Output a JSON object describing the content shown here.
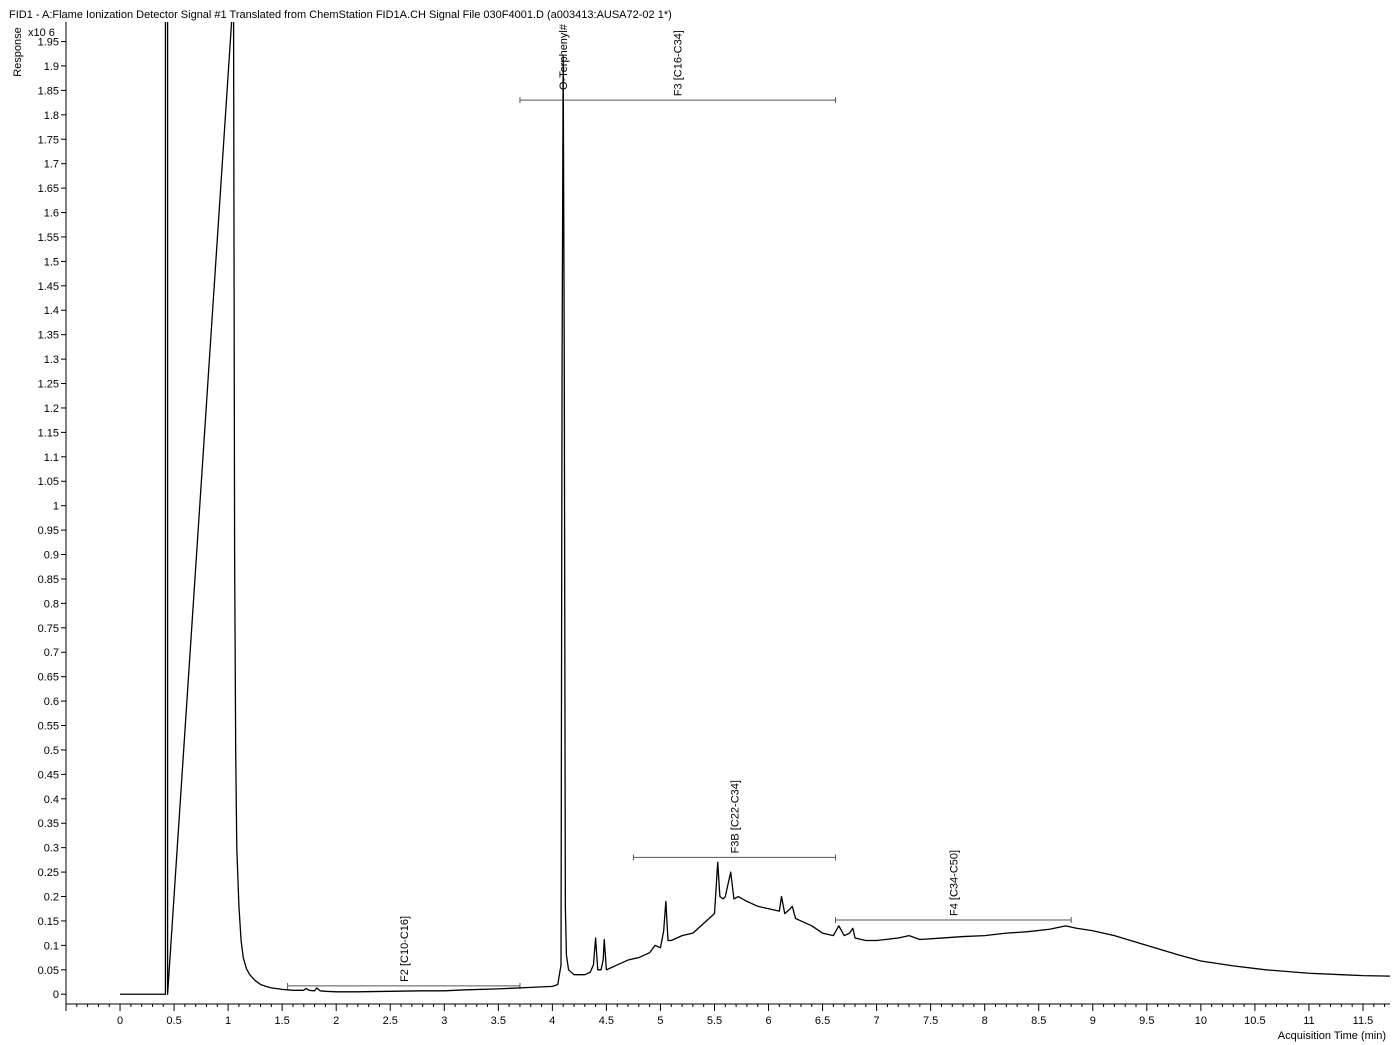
{
  "chart_data": {
    "type": "line",
    "title": "FID1 - A:Flame Ionization Detector Signal #1 Translated from ChemStation FID1A.CH Signal File 030F4001.D (a003413:AUSA72-02 1*)",
    "xlabel": "Acquisition Time (min)",
    "ylabel": "Response",
    "y_scale_label": "x10 6",
    "xlim": [
      -0.5,
      11.75
    ],
    "ylim": [
      -0.02,
      1.99
    ],
    "x_ticks": [
      0,
      0.5,
      1,
      1.5,
      2,
      2.5,
      3,
      3.5,
      4,
      4.5,
      5,
      5.5,
      6,
      6.5,
      7,
      7.5,
      8,
      8.5,
      9,
      9.5,
      10,
      10.5,
      11,
      11.5
    ],
    "x_tick_labels": [
      "0",
      "0.5",
      "1",
      "1.5",
      "2",
      "2.5",
      "3",
      "3.5",
      "4",
      "4.5",
      "5",
      "5.5",
      "6",
      "6.5",
      "7",
      "7.5",
      "8",
      "8.5",
      "9",
      "9.5",
      "10",
      "10.5",
      "11",
      "11.5"
    ],
    "y_ticks": [
      0,
      0.05,
      0.1,
      0.15,
      0.2,
      0.25,
      0.3,
      0.35,
      0.4,
      0.45,
      0.5,
      0.55,
      0.6,
      0.65,
      0.7,
      0.75,
      0.8,
      0.85,
      0.9,
      0.95,
      1,
      1.05,
      1.1,
      1.15,
      1.2,
      1.25,
      1.3,
      1.35,
      1.4,
      1.45,
      1.5,
      1.55,
      1.6,
      1.65,
      1.7,
      1.75,
      1.8,
      1.85,
      1.9,
      1.95
    ],
    "y_tick_labels": [
      "0",
      "0.05",
      "0.1",
      "0.15",
      "0.2",
      "0.25",
      "0.3",
      "0.35",
      "0.4",
      "0.45",
      "0.5",
      "0.55",
      "0.6",
      "0.65",
      "0.7",
      "0.75",
      "0.8",
      "0.85",
      "0.9",
      "0.95",
      "1",
      "1.05",
      "1.1",
      "1.15",
      "1.2",
      "1.25",
      "1.3",
      "1.35",
      "1.4",
      "1.45",
      "1.5",
      "1.55",
      "1.6",
      "1.65",
      "1.7",
      "1.75",
      "1.8",
      "1.85",
      "1.9",
      "1.95"
    ],
    "grid": false,
    "line_color": "#000000",
    "series": [
      {
        "x": [
          0,
          0.42,
          0.42,
          0.44,
          0.44,
          1.05,
          1.05,
          1.06,
          1.07,
          1.08,
          1.1,
          1.12,
          1.14,
          1.17,
          1.2,
          1.25,
          1.3,
          1.35,
          1.4,
          1.5,
          1.6,
          1.7,
          1.72,
          1.75,
          1.8,
          1.82,
          1.85,
          1.9,
          2,
          2.2,
          2.5,
          2.8,
          3,
          3.2,
          3.5,
          3.8,
          4,
          4.05,
          4.08,
          4.09,
          4.1,
          4.11,
          4.12,
          4.13,
          4.15,
          4.2,
          4.3,
          4.35,
          4.38,
          4.4,
          4.42,
          4.45,
          4.47,
          4.48,
          4.5,
          4.55,
          4.6,
          4.7,
          4.8,
          4.9,
          4.95,
          5,
          5.03,
          5.05,
          5.07,
          5.1,
          5.2,
          5.3,
          5.4,
          5.5,
          5.53,
          5.55,
          5.58,
          5.6,
          5.65,
          5.68,
          5.72,
          5.8,
          5.9,
          6,
          6.1,
          6.12,
          6.15,
          6.2,
          6.22,
          6.25,
          6.3,
          6.4,
          6.5,
          6.6,
          6.65,
          6.7,
          6.75,
          6.78,
          6.8,
          6.9,
          7,
          7.2,
          7.3,
          7.4,
          7.6,
          7.8,
          8,
          8.2,
          8.4,
          8.6,
          8.75,
          8.85,
          9,
          9.2,
          9.5,
          9.8,
          10,
          10.3,
          10.6,
          11,
          11.3,
          11.5,
          11.75
        ],
        "y": [
          0,
          0,
          2.05,
          2.05,
          0,
          2.05,
          2.05,
          0.9,
          0.5,
          0.3,
          0.18,
          0.11,
          0.075,
          0.052,
          0.04,
          0.028,
          0.02,
          0.016,
          0.013,
          0.01,
          0.008,
          0.008,
          0.012,
          0.008,
          0.007,
          0.013,
          0.007,
          0.006,
          0.005,
          0.005,
          0.006,
          0.007,
          0.007,
          0.009,
          0.011,
          0.014,
          0.016,
          0.02,
          0.06,
          1.3,
          1.92,
          1.3,
          0.18,
          0.08,
          0.05,
          0.04,
          0.04,
          0.045,
          0.06,
          0.115,
          0.05,
          0.05,
          0.07,
          0.112,
          0.05,
          0.055,
          0.06,
          0.07,
          0.075,
          0.085,
          0.1,
          0.095,
          0.13,
          0.19,
          0.11,
          0.11,
          0.12,
          0.125,
          0.145,
          0.165,
          0.27,
          0.2,
          0.195,
          0.2,
          0.25,
          0.195,
          0.2,
          0.19,
          0.18,
          0.175,
          0.17,
          0.2,
          0.165,
          0.175,
          0.18,
          0.155,
          0.15,
          0.14,
          0.125,
          0.12,
          0.14,
          0.12,
          0.125,
          0.135,
          0.115,
          0.11,
          0.11,
          0.115,
          0.12,
          0.112,
          0.115,
          0.118,
          0.12,
          0.125,
          0.128,
          0.133,
          0.14,
          0.135,
          0.13,
          0.12,
          0.1,
          0.08,
          0.068,
          0.058,
          0.05,
          0.043,
          0.04,
          0.038,
          0.037
        ]
      }
    ],
    "annotations": [
      {
        "label": "F2 [C10-C16]",
        "x1": 1.55,
        "x2": 3.7,
        "y": 0.017
      },
      {
        "label": "F3 [C16-C34]",
        "x1": 3.7,
        "x2": 6.62,
        "y": 1.83
      },
      {
        "label": "F3B [C22-C34]",
        "x1": 4.75,
        "x2": 6.62,
        "y": 0.28
      },
      {
        "label": "F4 [C34-C50]",
        "x1": 6.62,
        "x2": 8.8,
        "y": 0.152
      }
    ],
    "peak_labels": [
      {
        "label": "O-Terphenyl#",
        "x": 4.1
      }
    ]
  }
}
